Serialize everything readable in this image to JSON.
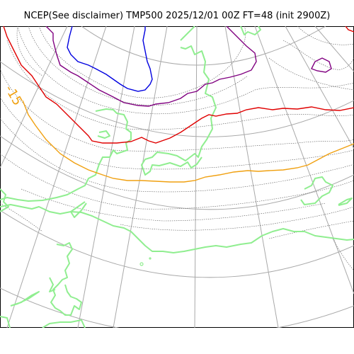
{
  "title": "NCEP(See disclaimer) TMP500 2025/12/01 00Z FT=48 (init 2900Z)",
  "map": {
    "variable": "TMP500",
    "colors": {
      "coastline": "#90ee90",
      "graticule": "#a9a9a9",
      "isotherm_minor": "#555555",
      "contour_red": "#e00000",
      "contour_purple": "#800080",
      "contour_blue": "#0000e0",
      "contour_orange": "#f0a010"
    },
    "contour_labels": [
      {
        "text": "-15",
        "color": "#f0a010"
      }
    ]
  }
}
